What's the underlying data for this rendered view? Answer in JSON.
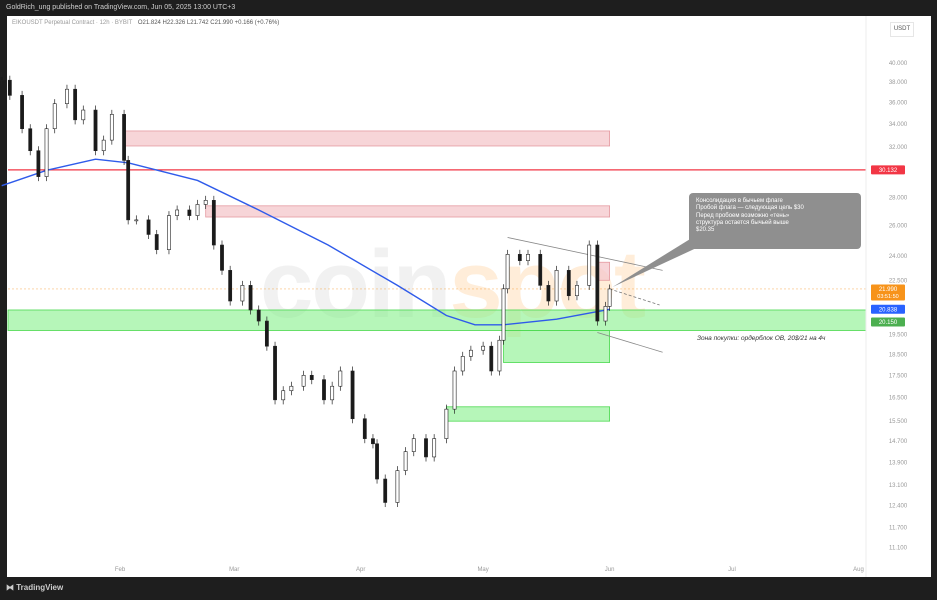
{
  "header": {
    "published_text": "GoldRich_ung published on TradingView.com, Jun 05, 2025 13:00 UTC+3",
    "symbol_text": "EIKOUSDT Perpetual Contract · 12h · BYBIT",
    "ohlc_text": "O21.824 H22.326 L21.742 C21.990 +0.166 (+0.76%)",
    "currency": "USDT"
  },
  "footer": {
    "logo_text": "TradingView"
  },
  "watermark": {
    "text_a": "coin",
    "text_b": "spot"
  },
  "annotations": {
    "callout_lines": [
      "Консолидация в бычьем флаге",
      "Пробой флага — следующая цель $30",
      "Перед пробоем возможно «тень»",
      "структура остается бычьей выше",
      "$20.35"
    ],
    "buy_zone_note": "Зона покупки: ордерблок OB, 20$/21 на 4ч"
  },
  "colors": {
    "background": "#ffffff",
    "frame": "#1e1e1e",
    "ma_line": "#2f5bea",
    "resistance_line": "#f23645",
    "supply_zone": "#f4c7cb",
    "demand_zone": "#86f08a",
    "last_price_label": "#f7931a",
    "ma_label": "#2962ff",
    "zone_label": "#4caf50",
    "candle_up": "#ffffff",
    "candle_down": "#1a1a1a"
  },
  "chart_data": {
    "type": "candlestick",
    "scale": "log",
    "grid": false,
    "x_ticks": [
      "Feb",
      "Mar",
      "Apr",
      "May",
      "Jun",
      "Jul",
      "Aug"
    ],
    "x_tick_dates": [
      "2025-02-01",
      "2025-03-01",
      "2025-04-01",
      "2025-05-01",
      "2025-06-01",
      "2025-07-01",
      "2025-08-01"
    ],
    "y_ticks": [
      "40.000",
      "38.000",
      "36.000",
      "34.000",
      "32.000",
      "28.000",
      "26.000",
      "24.000",
      "22.500",
      "19.500",
      "18.500",
      "17.500",
      "16.500",
      "15.500",
      "14.700",
      "13.900",
      "13.100",
      "12.400",
      "11.700",
      "11.100"
    ],
    "price_labels": [
      {
        "value": "30.132",
        "color": "#f23645"
      },
      {
        "value": "21.990",
        "sub": "03:51:50",
        "color": "#f7931a"
      },
      {
        "value": "20.838",
        "color": "#2962ff"
      },
      {
        "value": "20.150",
        "color": "#4caf50"
      }
    ],
    "last_price": 21.99,
    "closes": [
      [
        "2025-01-03",
        38.2
      ],
      [
        "2025-01-05",
        36.7
      ],
      [
        "2025-01-08",
        33.6
      ],
      [
        "2025-01-10",
        31.7
      ],
      [
        "2025-01-12",
        29.6
      ],
      [
        "2025-01-14",
        33.6
      ],
      [
        "2025-01-16",
        35.9
      ],
      [
        "2025-01-19",
        37.3
      ],
      [
        "2025-01-21",
        34.4
      ],
      [
        "2025-01-23",
        35.3
      ],
      [
        "2025-01-26",
        31.7
      ],
      [
        "2025-01-28",
        32.6
      ],
      [
        "2025-01-30",
        34.9
      ],
      [
        "2025-02-02",
        30.9
      ],
      [
        "2025-02-03",
        26.4
      ],
      [
        "2025-02-05",
        26.4
      ],
      [
        "2025-02-08",
        25.4
      ],
      [
        "2025-02-10",
        24.4
      ],
      [
        "2025-02-13",
        26.7
      ],
      [
        "2025-02-15",
        27.1
      ],
      [
        "2025-02-18",
        26.7
      ],
      [
        "2025-02-20",
        27.5
      ],
      [
        "2025-02-22",
        27.8
      ],
      [
        "2025-02-24",
        24.7
      ],
      [
        "2025-02-26",
        23.1
      ],
      [
        "2025-02-28",
        21.3
      ],
      [
        "2025-03-03",
        22.2
      ],
      [
        "2025-03-05",
        20.8
      ],
      [
        "2025-03-07",
        20.2
      ],
      [
        "2025-03-09",
        18.9
      ],
      [
        "2025-03-11",
        16.4
      ],
      [
        "2025-03-13",
        16.8
      ],
      [
        "2025-03-15",
        17.0
      ],
      [
        "2025-03-18",
        17.5
      ],
      [
        "2025-03-20",
        17.3
      ],
      [
        "2025-03-23",
        16.4
      ],
      [
        "2025-03-25",
        17.0
      ],
      [
        "2025-03-27",
        17.7
      ],
      [
        "2025-03-30",
        15.6
      ],
      [
        "2025-04-02",
        14.8
      ],
      [
        "2025-04-04",
        14.6
      ],
      [
        "2025-04-05",
        13.3
      ],
      [
        "2025-04-07",
        12.5
      ],
      [
        "2025-04-10",
        13.6
      ],
      [
        "2025-04-12",
        14.3
      ],
      [
        "2025-04-14",
        14.8
      ],
      [
        "2025-04-17",
        14.1
      ],
      [
        "2025-04-19",
        14.8
      ],
      [
        "2025-04-22",
        16.0
      ],
      [
        "2025-04-24",
        17.7
      ],
      [
        "2025-04-26",
        18.4
      ],
      [
        "2025-04-28",
        18.7
      ],
      [
        "2025-05-01",
        18.9
      ],
      [
        "2025-05-03",
        17.7
      ],
      [
        "2025-05-05",
        19.2
      ],
      [
        "2025-05-06",
        22.0
      ],
      [
        "2025-05-07",
        24.1
      ],
      [
        "2025-05-10",
        23.7
      ],
      [
        "2025-05-12",
        24.1
      ],
      [
        "2025-05-15",
        22.2
      ],
      [
        "2025-05-17",
        21.3
      ],
      [
        "2025-05-19",
        23.1
      ],
      [
        "2025-05-22",
        21.6
      ],
      [
        "2025-05-24",
        22.2
      ],
      [
        "2025-05-27",
        24.7
      ],
      [
        "2025-05-29",
        20.2
      ],
      [
        "2025-05-31",
        21.0
      ],
      [
        "2025-06-01",
        21.99
      ]
    ],
    "moving_average": [
      [
        "2025-01-03",
        28.9
      ],
      [
        "2025-01-14",
        30.1
      ],
      [
        "2025-01-26",
        31.0
      ],
      [
        "2025-02-03",
        30.7
      ],
      [
        "2025-02-20",
        29.3
      ],
      [
        "2025-03-07",
        27.1
      ],
      [
        "2025-03-24",
        24.7
      ],
      [
        "2025-04-10",
        22.2
      ],
      [
        "2025-04-22",
        20.5
      ],
      [
        "2025-04-29",
        20.0
      ],
      [
        "2025-05-06",
        20.0
      ],
      [
        "2025-05-19",
        20.3
      ],
      [
        "2025-06-01",
        20.838
      ]
    ],
    "horizontal_line": {
      "price": 30.132
    },
    "zones": [
      {
        "kind": "supply",
        "from": "2025-02-02",
        "to": "2025-06-01",
        "top": 33.4,
        "bottom": 32.1
      },
      {
        "kind": "supply",
        "from": "2025-02-22",
        "to": "2025-06-01",
        "top": 27.4,
        "bottom": 26.6
      },
      {
        "kind": "supply",
        "from": "2025-05-29",
        "to": "2025-06-01",
        "top": 23.6,
        "bottom": 22.5
      },
      {
        "kind": "demand",
        "from": "2025-01-01",
        "to": "2025-08-07",
        "top": 20.8,
        "bottom": 19.7
      },
      {
        "kind": "demand",
        "from": "2025-05-06",
        "to": "2025-06-01",
        "top": 19.7,
        "bottom": 18.1
      },
      {
        "kind": "demand",
        "from": "2025-04-22",
        "to": "2025-06-01",
        "top": 16.1,
        "bottom": 15.5
      }
    ],
    "channel": [
      {
        "from": [
          "2025-05-07",
          25.2
        ],
        "to": [
          "2025-06-14",
          23.1
        ]
      },
      {
        "from": [
          "2025-05-29",
          19.6
        ],
        "to": [
          "2025-06-14",
          18.6
        ]
      }
    ]
  }
}
